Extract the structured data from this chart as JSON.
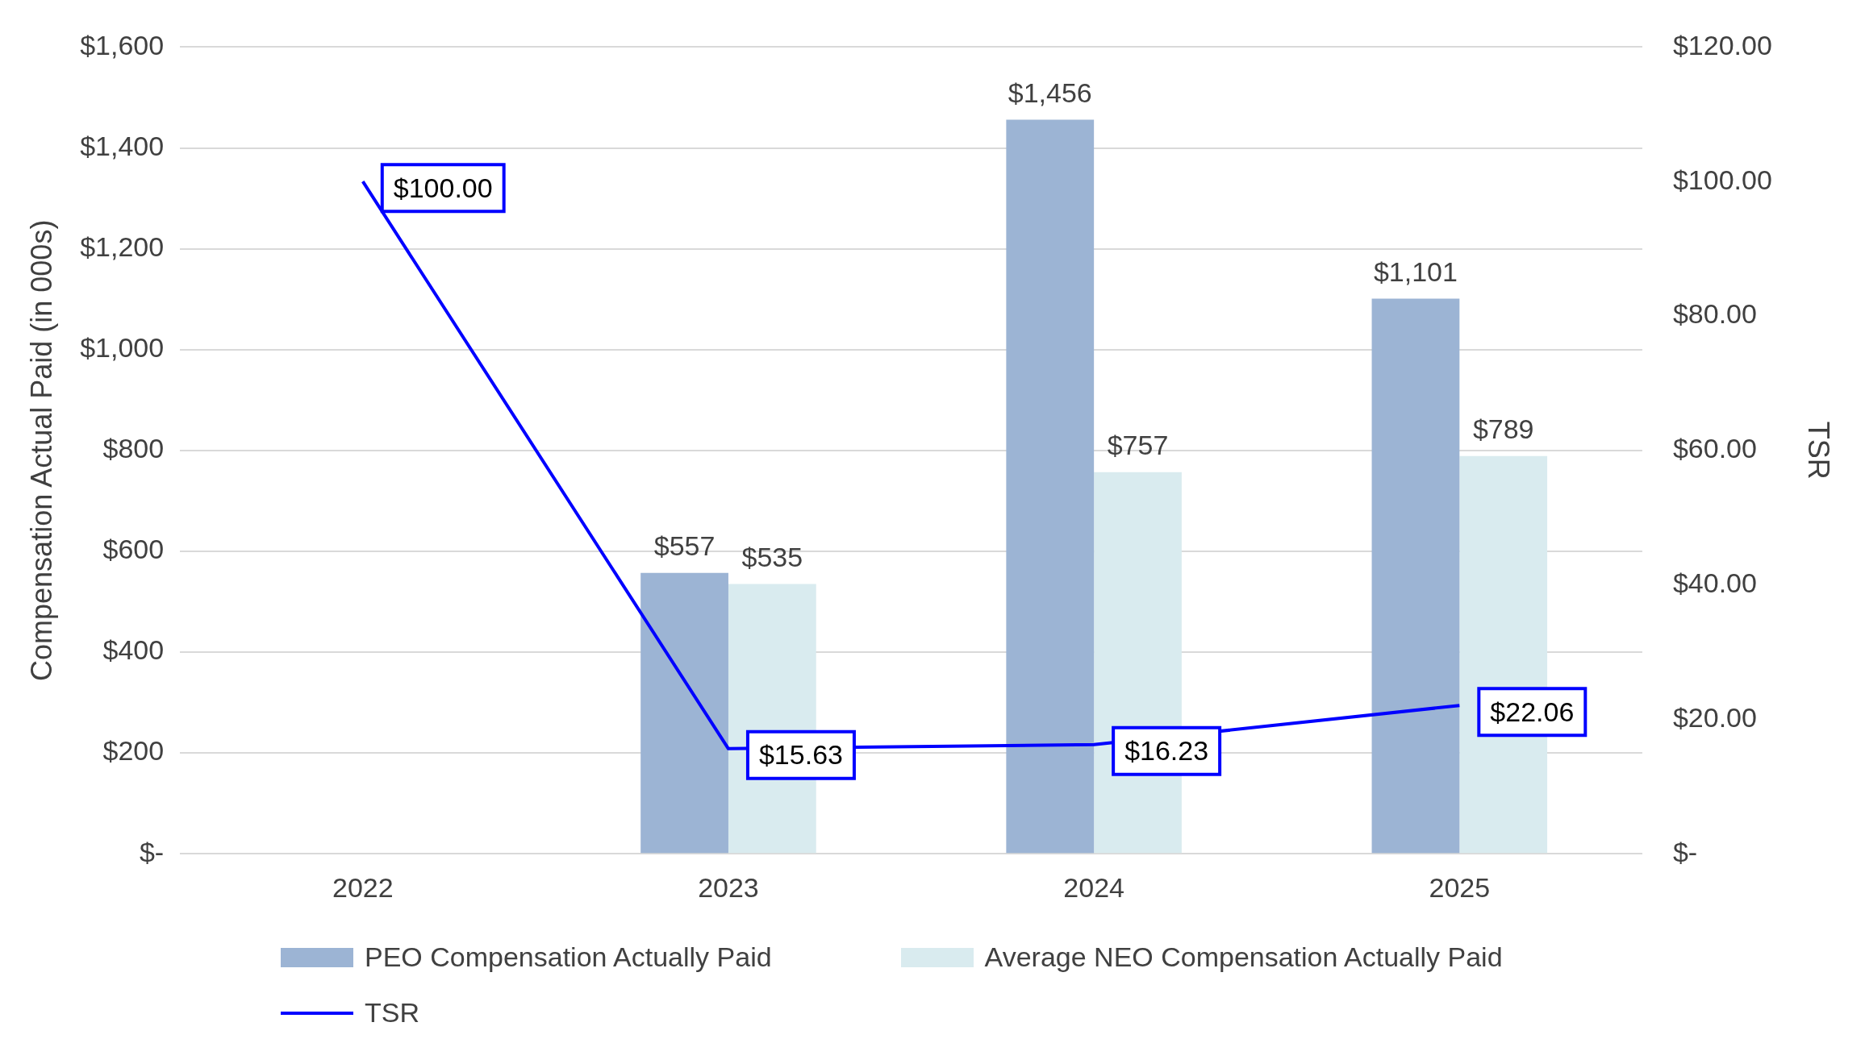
{
  "chart_data": {
    "type": "bar",
    "categories": [
      "2022",
      "2023",
      "2024",
      "2025"
    ],
    "ylabel": "Compensation Actual Paid (in 000s)",
    "y2label": "TSR",
    "ylim": [
      0,
      1600
    ],
    "yticks": [
      {
        "value": 0,
        "label": "$-"
      },
      {
        "value": 200,
        "label": "$200"
      },
      {
        "value": 400,
        "label": "$400"
      },
      {
        "value": 600,
        "label": "$600"
      },
      {
        "value": 800,
        "label": "$800"
      },
      {
        "value": 1000,
        "label": "$1,000"
      },
      {
        "value": 1200,
        "label": "$1,200"
      },
      {
        "value": 1400,
        "label": "$1,400"
      },
      {
        "value": 1600,
        "label": "$1,600"
      }
    ],
    "y2lim": [
      0,
      120
    ],
    "y2ticks": [
      {
        "value": 0,
        "label": "$-"
      },
      {
        "value": 20,
        "label": "$20.00"
      },
      {
        "value": 40,
        "label": "$40.00"
      },
      {
        "value": 60,
        "label": "$60.00"
      },
      {
        "value": 80,
        "label": "$80.00"
      },
      {
        "value": 100,
        "label": "$100.00"
      },
      {
        "value": 120,
        "label": "$120.00"
      }
    ],
    "grid": "y",
    "legend": "bottom",
    "series": [
      {
        "name": "PEO Compensation Actually Paid",
        "color": "#9cb4d4",
        "values": [
          null,
          557,
          1456,
          1101
        ],
        "value_labels": [
          null,
          "$557",
          "$1,456",
          "$1,101"
        ]
      },
      {
        "name": "Average NEO Compensation Actually Paid",
        "color": "#d9ebef",
        "values": [
          null,
          535,
          757,
          789
        ],
        "value_labels": [
          null,
          "$535",
          "$757",
          "$789"
        ]
      },
      {
        "name": "TSR",
        "type": "line",
        "axis": "y2",
        "color": "#0000ff",
        "values": [
          100,
          15.63,
          16.23,
          22.06
        ],
        "value_labels": [
          "$100.00",
          "$15.63",
          "$16.23",
          "$22.06"
        ]
      }
    ]
  }
}
